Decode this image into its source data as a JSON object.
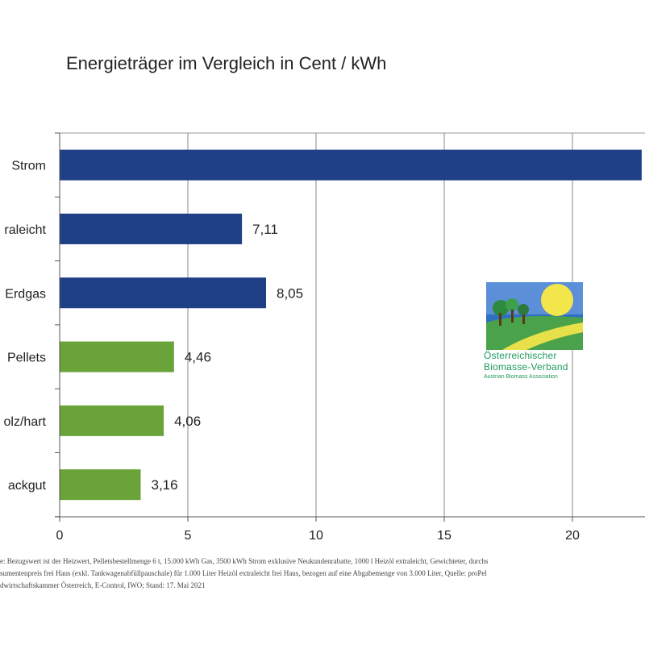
{
  "chart_data": {
    "type": "bar",
    "orientation": "horizontal",
    "title": "Energieträger im Vergleich in Cent / kWh",
    "categories": [
      "Strom",
      "raleicht",
      "Erdgas",
      "Pellets",
      "olz/hart",
      "ackgut"
    ],
    "values": [
      22.7,
      7.11,
      8.05,
      4.46,
      4.06,
      3.16
    ],
    "value_labels": [
      "",
      "7,11",
      "8,05",
      "4,46",
      "4,06",
      "3,16"
    ],
    "colors": [
      "#1f3f86",
      "#1f3f86",
      "#1f3f86",
      "#6aa339",
      "#6aa339",
      "#6aa339"
    ],
    "xticks": [
      "0",
      "5",
      "10",
      "15",
      "20"
    ],
    "xlim": [
      0,
      22.7
    ],
    "grid": true,
    "legend": "none"
  },
  "logo": {
    "line1": "Österreichischer",
    "line2": "Biomasse-Verband",
    "line3": "Austrian Biomass Association"
  },
  "footnote": {
    "line1": "e: Bezugswert ist der Heizwert, Pelletsbestellmenge 6 t, 15.000 kWh Gas, 3500 kWh Strom exklusive Neukundenrabatte, 1000 l Heizöl extraleicht, Gewichteter, durchs",
    "line2": "sumentenpreis frei Haus (exkl. Tankwagenabfüllpauschale) für 1.000 Liter Heizöl extraleicht frei Haus, bezogen auf eine Abgabemenge von 3.000 Liter, Quelle: proPel",
    "line3": "dwirtschaftskammer Österreich, E-Control, IWO; Stand: 17. Mai 2021"
  }
}
